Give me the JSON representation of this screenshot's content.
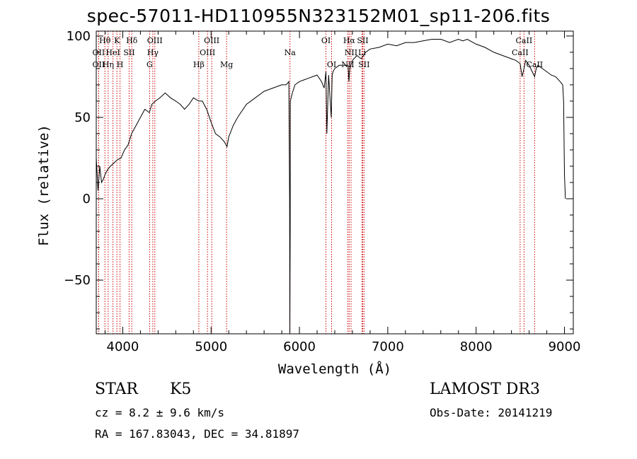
{
  "title": "spec-57011-HD110955N323152M01_sp11-206.fits",
  "info": {
    "classification": "STAR",
    "subclass": "K5",
    "survey": "LAMOST DR3",
    "cz": "cz = 8.2 ± 9.6 km/s",
    "obs_date": "Obs-Date: 20141219",
    "coords": "RA = 167.83043, DEC =  34.81897"
  },
  "chart_data": {
    "type": "line",
    "title": "spec-57011-HD110955N323152M01_sp11-206.fits",
    "xlabel": "Wavelength (Å)",
    "ylabel": "Flux (relative)",
    "xlim": [
      3700,
      9100
    ],
    "ylim": [
      -83,
      103
    ],
    "xticks": [
      4000,
      5000,
      6000,
      7000,
      8000,
      9000
    ],
    "yticks": [
      -50,
      0,
      50,
      100
    ],
    "series": [
      {
        "name": "flux",
        "x": [
          3700,
          3720,
          3740,
          3760,
          3780,
          3800,
          3830,
          3860,
          3900,
          3940,
          3980,
          4020,
          4060,
          4100,
          4150,
          4200,
          4250,
          4300,
          4330,
          4370,
          4420,
          4480,
          4540,
          4600,
          4650,
          4700,
          4750,
          4800,
          4860,
          4900,
          4950,
          5000,
          5050,
          5100,
          5150,
          5180,
          5200,
          5250,
          5300,
          5400,
          5500,
          5600,
          5700,
          5800,
          5850,
          5880,
          5889,
          5891,
          5893,
          5895,
          5897,
          5920,
          5950,
          6000,
          6050,
          6100,
          6150,
          6200,
          6250,
          6280,
          6300,
          6310,
          6330,
          6360,
          6370,
          6380,
          6400,
          6450,
          6500,
          6550,
          6560,
          6565,
          6570,
          6600,
          6650,
          6700,
          6750,
          6800,
          6900,
          7000,
          7100,
          7200,
          7300,
          7400,
          7500,
          7600,
          7700,
          7800,
          7850,
          7900,
          8000,
          8100,
          8200,
          8300,
          8400,
          8450,
          8498,
          8520,
          8542,
          8560,
          8600,
          8662,
          8680,
          8700,
          8750,
          8800,
          8850,
          8900,
          8950,
          8980,
          8990,
          9000,
          9010
        ],
        "y": [
          25,
          5,
          20,
          10,
          12,
          15,
          18,
          20,
          22,
          24,
          25,
          30,
          33,
          40,
          45,
          50,
          55,
          53,
          58,
          60,
          62,
          65,
          62,
          60,
          58,
          55,
          58,
          62,
          60,
          60,
          55,
          47,
          40,
          38,
          35,
          32,
          38,
          45,
          50,
          58,
          62,
          66,
          68,
          70,
          70,
          72,
          0,
          -83,
          -50,
          -20,
          60,
          65,
          70,
          72,
          73,
          74,
          75,
          76,
          72,
          68,
          78,
          40,
          76,
          50,
          76,
          78,
          80,
          82,
          82,
          82,
          72,
          76,
          80,
          85,
          88,
          86,
          90,
          92,
          93,
          95,
          94,
          96,
          96,
          97,
          98,
          98,
          96,
          98,
          97,
          98,
          95,
          93,
          90,
          88,
          86,
          85,
          83,
          75,
          80,
          85,
          82,
          75,
          80,
          82,
          80,
          78,
          76,
          75,
          72,
          70,
          60,
          15,
          0
        ]
      }
    ],
    "lines": [
      {
        "label": "Hθ",
        "x": 3798,
        "row": 0
      },
      {
        "label": "OII",
        "x": 3727,
        "row": 1
      },
      {
        "label": "OII",
        "x": 3727,
        "row": 2
      },
      {
        "label": "Hη",
        "x": 3835,
        "row": 2
      },
      {
        "label": "K",
        "x": 3934,
        "row": 0
      },
      {
        "label": "HeI",
        "x": 3889,
        "row": 1
      },
      {
        "label": "H",
        "x": 3969,
        "row": 2
      },
      {
        "label": "Hδ",
        "x": 4102,
        "row": 0
      },
      {
        "label": "SII",
        "x": 4072,
        "row": 1
      },
      {
        "label": "OIII",
        "x": 4363,
        "row": 0
      },
      {
        "label": "Hγ",
        "x": 4340,
        "row": 1
      },
      {
        "label": "G",
        "x": 4304,
        "row": 2
      },
      {
        "label": "OIII",
        "x": 5007,
        "row": 0
      },
      {
        "label": "OIII",
        "x": 4959,
        "row": 1
      },
      {
        "label": "Hβ",
        "x": 4861,
        "row": 2
      },
      {
        "label": "Mg",
        "x": 5175,
        "row": 2
      },
      {
        "label": "Na",
        "x": 5893,
        "row": 1
      },
      {
        "label": "OI",
        "x": 6300,
        "row": 0
      },
      {
        "label": "OI",
        "x": 6364,
        "row": 2
      },
      {
        "label": "Hα",
        "x": 6563,
        "row": 0
      },
      {
        "label": "SII",
        "x": 6716,
        "row": 0
      },
      {
        "label": "NII",
        "x": 6584,
        "row": 1
      },
      {
        "label": "Li",
        "x": 6708,
        "row": 1
      },
      {
        "label": "NII",
        "x": 6548,
        "row": 2
      },
      {
        "label": "SII",
        "x": 6731,
        "row": 2
      },
      {
        "label": "CaII",
        "x": 8542,
        "row": 0
      },
      {
        "label": "CaII",
        "x": 8498,
        "row": 1
      },
      {
        "label": "CaII",
        "x": 8662,
        "row": 2
      }
    ]
  }
}
